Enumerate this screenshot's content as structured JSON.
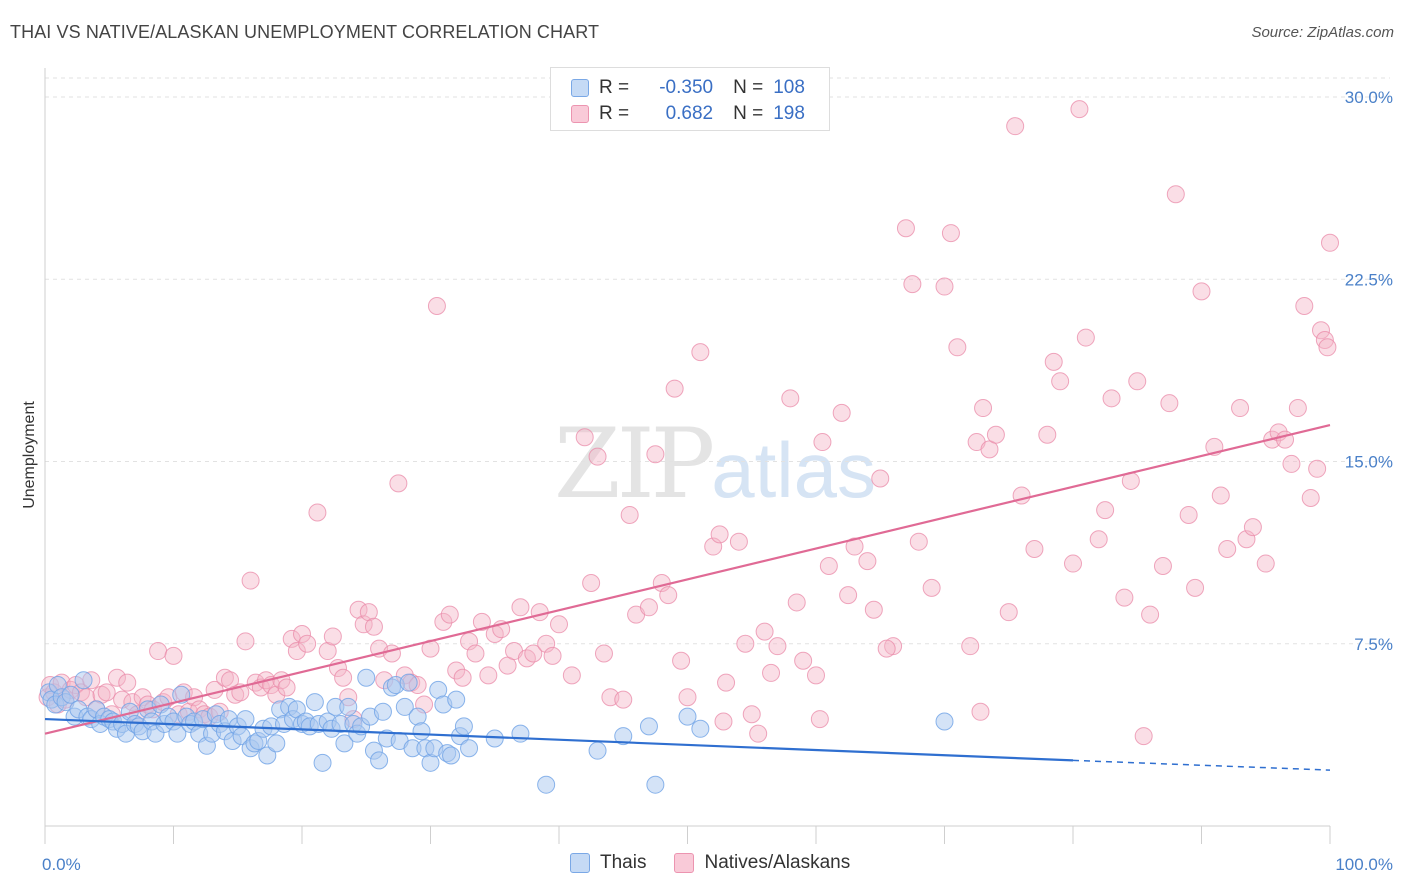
{
  "title": "THAI VS NATIVE/ALASKAN UNEMPLOYMENT CORRELATION CHART",
  "source": "Source: ZipAtlas.com",
  "watermark": {
    "zip": "ZIP",
    "atlas": "atlas"
  },
  "legend": {
    "rows": [
      {
        "r_label": "R =",
        "r_value": "-0.350",
        "n_label": "N =",
        "n_value": "108",
        "color": "#a9c8f0"
      },
      {
        "r_label": "R =",
        "r_value": "0.682",
        "n_label": "N =",
        "n_value": "198",
        "color": "#f5b5c8"
      }
    ]
  },
  "bottom_legend": [
    "Thais",
    "Natives/Alaskans"
  ],
  "chart_data": {
    "type": "scatter",
    "title": "THAI VS NATIVE/ALASKAN UNEMPLOYMENT CORRELATION CHART",
    "xlabel": "",
    "ylabel": "Unemployment",
    "xlim": [
      0,
      100
    ],
    "ylim": [
      0,
      30
    ],
    "x_tick_labels": [
      "0.0%",
      "100.0%"
    ],
    "y_ticks": [
      7.5,
      15.0,
      22.5,
      30.0
    ],
    "y_tick_labels": [
      "7.5%",
      "15.0%",
      "22.5%",
      "30.0%"
    ],
    "grid": true,
    "colors": {
      "thais": "#6fa3e6",
      "thais_fill": "#a9c8f0",
      "natives": "#e98aa8",
      "natives_fill": "#f5b5c8",
      "thais_line": "#2f6fd0",
      "natives_line": "#e06a95"
    },
    "series": [
      {
        "name": "Thais",
        "trend": {
          "x": [
            0,
            80
          ],
          "y": [
            4.4,
            2.7
          ],
          "dash_to": [
            100,
            2.3
          ]
        },
        "points": [
          [
            0.3,
            5.5
          ],
          [
            0.5,
            5.2
          ],
          [
            0.8,
            5.0
          ],
          [
            1.0,
            5.8
          ],
          [
            1.3,
            5.3
          ],
          [
            1.6,
            5.1
          ],
          [
            2.0,
            5.4
          ],
          [
            2.3,
            4.5
          ],
          [
            2.6,
            4.8
          ],
          [
            3.0,
            6.0
          ],
          [
            3.3,
            4.5
          ],
          [
            3.6,
            4.4
          ],
          [
            4.0,
            4.8
          ],
          [
            4.3,
            4.2
          ],
          [
            4.6,
            4.5
          ],
          [
            5.0,
            4.4
          ],
          [
            5.3,
            4.3
          ],
          [
            5.6,
            4.0
          ],
          [
            6.0,
            4.2
          ],
          [
            6.3,
            3.8
          ],
          [
            6.6,
            4.7
          ],
          [
            7.0,
            4.2
          ],
          [
            7.3,
            4.1
          ],
          [
            7.6,
            3.9
          ],
          [
            8.0,
            4.8
          ],
          [
            8.3,
            4.3
          ],
          [
            8.6,
            3.8
          ],
          [
            9.0,
            5.0
          ],
          [
            9.3,
            4.2
          ],
          [
            9.6,
            4.5
          ],
          [
            10.0,
            4.3
          ],
          [
            10.3,
            3.8
          ],
          [
            10.6,
            5.4
          ],
          [
            11.0,
            4.5
          ],
          [
            11.3,
            4.2
          ],
          [
            11.6,
            4.3
          ],
          [
            12.0,
            3.8
          ],
          [
            12.3,
            4.4
          ],
          [
            12.6,
            3.3
          ],
          [
            13.0,
            3.8
          ],
          [
            13.3,
            4.6
          ],
          [
            13.6,
            4.2
          ],
          [
            14.0,
            3.9
          ],
          [
            14.3,
            4.4
          ],
          [
            14.6,
            3.5
          ],
          [
            15.0,
            4.1
          ],
          [
            15.3,
            3.7
          ],
          [
            15.6,
            4.4
          ],
          [
            16.0,
            3.2
          ],
          [
            16.3,
            3.4
          ],
          [
            16.6,
            3.5
          ],
          [
            17.0,
            4.0
          ],
          [
            17.3,
            2.9
          ],
          [
            17.6,
            4.1
          ],
          [
            18.0,
            3.4
          ],
          [
            18.3,
            4.8
          ],
          [
            18.6,
            4.2
          ],
          [
            19.0,
            4.9
          ],
          [
            19.3,
            4.4
          ],
          [
            19.6,
            4.8
          ],
          [
            20.0,
            4.2
          ],
          [
            20.3,
            4.3
          ],
          [
            20.6,
            4.1
          ],
          [
            21.0,
            5.1
          ],
          [
            21.3,
            4.2
          ],
          [
            21.6,
            2.6
          ],
          [
            22.0,
            4.3
          ],
          [
            22.3,
            4.0
          ],
          [
            22.6,
            4.9
          ],
          [
            23.0,
            4.2
          ],
          [
            23.3,
            3.4
          ],
          [
            23.6,
            4.9
          ],
          [
            24.0,
            4.2
          ],
          [
            24.3,
            3.8
          ],
          [
            24.6,
            4.1
          ],
          [
            25.0,
            6.1
          ],
          [
            25.3,
            4.5
          ],
          [
            25.6,
            3.1
          ],
          [
            26.0,
            2.7
          ],
          [
            26.3,
            4.7
          ],
          [
            26.6,
            3.6
          ],
          [
            27.0,
            5.7
          ],
          [
            27.3,
            5.8
          ],
          [
            27.6,
            3.5
          ],
          [
            28.0,
            4.9
          ],
          [
            28.3,
            5.9
          ],
          [
            28.6,
            3.2
          ],
          [
            29.0,
            4.5
          ],
          [
            29.3,
            3.9
          ],
          [
            29.6,
            3.2
          ],
          [
            30.0,
            2.6
          ],
          [
            30.3,
            3.2
          ],
          [
            30.6,
            5.6
          ],
          [
            31.0,
            5.0
          ],
          [
            31.3,
            3.0
          ],
          [
            31.6,
            2.9
          ],
          [
            32.0,
            5.2
          ],
          [
            32.3,
            3.7
          ],
          [
            32.6,
            4.1
          ],
          [
            33.0,
            3.2
          ],
          [
            35.0,
            3.6
          ],
          [
            37.0,
            3.8
          ],
          [
            39.0,
            1.7
          ],
          [
            43.0,
            3.1
          ],
          [
            45.0,
            3.7
          ],
          [
            47.0,
            4.1
          ],
          [
            47.5,
            1.7
          ],
          [
            50.0,
            4.5
          ],
          [
            51.0,
            4.0
          ],
          [
            70.0,
            4.3
          ]
        ]
      },
      {
        "name": "Natives/Alaskans",
        "trend": {
          "x": [
            0,
            100
          ],
          "y": [
            3.8,
            16.5
          ]
        },
        "points": [
          [
            0.2,
            5.3
          ],
          [
            0.4,
            5.8
          ],
          [
            0.7,
            5.5
          ],
          [
            1.0,
            5.0
          ],
          [
            1.3,
            5.9
          ],
          [
            1.6,
            5.2
          ],
          [
            2.0,
            5.6
          ],
          [
            2.4,
            5.8
          ],
          [
            2.8,
            5.5
          ],
          [
            3.2,
            5.3
          ],
          [
            3.6,
            6.0
          ],
          [
            4.0,
            4.8
          ],
          [
            4.4,
            5.4
          ],
          [
            4.8,
            5.5
          ],
          [
            5.2,
            4.6
          ],
          [
            5.6,
            6.1
          ],
          [
            6.0,
            5.2
          ],
          [
            6.4,
            5.9
          ],
          [
            6.8,
            5.1
          ],
          [
            7.2,
            4.6
          ],
          [
            7.6,
            5.3
          ],
          [
            8.0,
            5.0
          ],
          [
            8.4,
            4.8
          ],
          [
            8.8,
            7.2
          ],
          [
            9.2,
            5.1
          ],
          [
            9.6,
            5.3
          ],
          [
            10.0,
            7.0
          ],
          [
            10.4,
            4.6
          ],
          [
            10.8,
            5.5
          ],
          [
            11.2,
            4.7
          ],
          [
            11.6,
            5.3
          ],
          [
            12.0,
            4.8
          ],
          [
            12.4,
            4.6
          ],
          [
            12.8,
            4.5
          ],
          [
            13.2,
            5.6
          ],
          [
            13.6,
            4.7
          ],
          [
            14.0,
            6.1
          ],
          [
            14.4,
            6.0
          ],
          [
            14.8,
            5.4
          ],
          [
            15.2,
            5.5
          ],
          [
            15.6,
            7.6
          ],
          [
            16.0,
            10.1
          ],
          [
            16.4,
            5.9
          ],
          [
            16.8,
            5.7
          ],
          [
            17.2,
            6.0
          ],
          [
            17.6,
            5.8
          ],
          [
            18.0,
            5.4
          ],
          [
            18.4,
            6.0
          ],
          [
            18.8,
            5.7
          ],
          [
            19.2,
            7.7
          ],
          [
            19.6,
            7.2
          ],
          [
            20.0,
            7.9
          ],
          [
            20.4,
            7.5
          ],
          [
            21.2,
            12.9
          ],
          [
            22.0,
            7.2
          ],
          [
            22.4,
            7.8
          ],
          [
            22.8,
            6.5
          ],
          [
            23.2,
            6.1
          ],
          [
            23.6,
            5.3
          ],
          [
            24.0,
            4.4
          ],
          [
            24.4,
            8.9
          ],
          [
            24.8,
            8.3
          ],
          [
            25.2,
            8.8
          ],
          [
            25.6,
            8.2
          ],
          [
            26.0,
            7.3
          ],
          [
            26.4,
            6.0
          ],
          [
            27.0,
            7.1
          ],
          [
            27.5,
            14.1
          ],
          [
            28.0,
            6.2
          ],
          [
            28.5,
            5.9
          ],
          [
            29.0,
            5.8
          ],
          [
            29.5,
            5.0
          ],
          [
            30.0,
            7.3
          ],
          [
            30.5,
            21.4
          ],
          [
            31.0,
            8.4
          ],
          [
            31.5,
            8.7
          ],
          [
            32.0,
            6.4
          ],
          [
            32.5,
            6.1
          ],
          [
            33.0,
            7.6
          ],
          [
            33.5,
            7.1
          ],
          [
            34.0,
            8.4
          ],
          [
            34.5,
            6.2
          ],
          [
            35.0,
            7.9
          ],
          [
            35.5,
            8.1
          ],
          [
            36.0,
            6.6
          ],
          [
            36.5,
            7.2
          ],
          [
            37.0,
            9.0
          ],
          [
            37.5,
            6.9
          ],
          [
            38.0,
            7.1
          ],
          [
            38.5,
            8.8
          ],
          [
            39.0,
            7.5
          ],
          [
            39.5,
            7.0
          ],
          [
            40.0,
            8.3
          ],
          [
            41.0,
            6.2
          ],
          [
            42.0,
            16.0
          ],
          [
            42.5,
            10.0
          ],
          [
            43.0,
            15.2
          ],
          [
            43.5,
            7.1
          ],
          [
            44.0,
            5.3
          ],
          [
            45.0,
            5.2
          ],
          [
            45.5,
            12.8
          ],
          [
            46.0,
            8.7
          ],
          [
            47.0,
            9.0
          ],
          [
            47.5,
            15.3
          ],
          [
            48.0,
            10.0
          ],
          [
            48.5,
            9.5
          ],
          [
            49.0,
            18.0
          ],
          [
            49.5,
            6.8
          ],
          [
            50.0,
            5.3
          ],
          [
            51.0,
            19.5
          ],
          [
            52.0,
            11.5
          ],
          [
            52.5,
            12.0
          ],
          [
            53.0,
            5.9
          ],
          [
            54.0,
            11.7
          ],
          [
            54.5,
            7.5
          ],
          [
            55.0,
            4.6
          ],
          [
            56.0,
            8.0
          ],
          [
            56.5,
            6.3
          ],
          [
            57.0,
            7.4
          ],
          [
            58.0,
            17.6
          ],
          [
            58.5,
            9.2
          ],
          [
            59.0,
            6.8
          ],
          [
            60.0,
            6.2
          ],
          [
            60.5,
            15.8
          ],
          [
            61.0,
            10.7
          ],
          [
            62.0,
            17.0
          ],
          [
            62.5,
            9.5
          ],
          [
            63.0,
            11.5
          ],
          [
            64.0,
            10.9
          ],
          [
            64.5,
            8.9
          ],
          [
            65.0,
            14.3
          ],
          [
            66.0,
            7.4
          ],
          [
            67.0,
            24.6
          ],
          [
            67.5,
            22.3
          ],
          [
            68.0,
            11.7
          ],
          [
            69.0,
            9.8
          ],
          [
            70.0,
            22.2
          ],
          [
            71.0,
            19.7
          ],
          [
            72.0,
            7.4
          ],
          [
            72.5,
            15.8
          ],
          [
            73.0,
            17.2
          ],
          [
            73.5,
            15.5
          ],
          [
            74.0,
            16.1
          ],
          [
            75.0,
            8.8
          ],
          [
            76.0,
            13.6
          ],
          [
            77.0,
            11.4
          ],
          [
            78.0,
            16.1
          ],
          [
            78.5,
            19.1
          ],
          [
            79.0,
            18.3
          ],
          [
            80.0,
            10.8
          ],
          [
            80.5,
            29.5
          ],
          [
            81.0,
            20.1
          ],
          [
            82.0,
            11.8
          ],
          [
            82.5,
            13.0
          ],
          [
            83.0,
            17.6
          ],
          [
            84.0,
            9.4
          ],
          [
            84.5,
            14.2
          ],
          [
            85.0,
            18.3
          ],
          [
            86.0,
            8.7
          ],
          [
            87.0,
            10.7
          ],
          [
            87.5,
            17.4
          ],
          [
            88.0,
            26.0
          ],
          [
            89.0,
            12.8
          ],
          [
            89.5,
            9.8
          ],
          [
            90.0,
            22.0
          ],
          [
            91.0,
            15.6
          ],
          [
            91.5,
            13.6
          ],
          [
            92.0,
            11.4
          ],
          [
            93.0,
            17.2
          ],
          [
            93.5,
            11.8
          ],
          [
            94.0,
            12.3
          ],
          [
            95.0,
            10.8
          ],
          [
            95.5,
            15.9
          ],
          [
            96.0,
            16.2
          ],
          [
            96.5,
            15.9
          ],
          [
            97.0,
            14.9
          ],
          [
            97.5,
            17.2
          ],
          [
            98.0,
            21.4
          ],
          [
            98.5,
            13.5
          ],
          [
            99.0,
            14.7
          ],
          [
            99.3,
            20.4
          ],
          [
            99.6,
            20.0
          ],
          [
            99.8,
            19.7
          ],
          [
            100.0,
            24.0
          ],
          [
            70.5,
            24.4
          ],
          [
            75.5,
            28.8
          ],
          [
            60.3,
            4.4
          ],
          [
            65.5,
            7.3
          ],
          [
            55.5,
            3.8
          ],
          [
            52.8,
            4.3
          ],
          [
            85.5,
            3.7
          ],
          [
            72.8,
            4.7
          ]
        ]
      }
    ]
  }
}
